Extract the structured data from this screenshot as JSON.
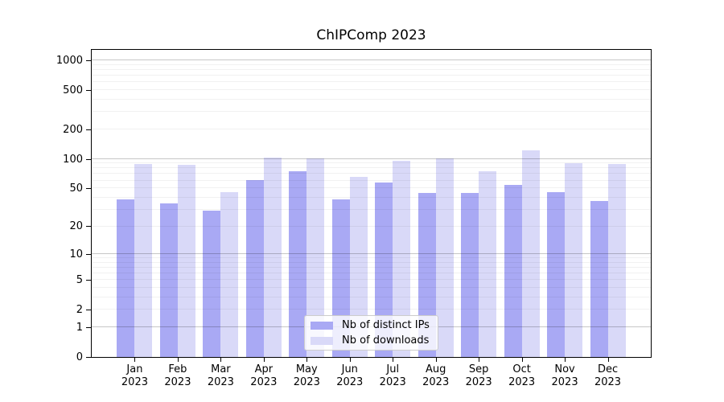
{
  "chart_data": {
    "type": "bar",
    "title": "ChIPComp 2023",
    "categories": [
      "Jan",
      "Feb",
      "Mar",
      "Apr",
      "May",
      "Jun",
      "Jul",
      "Aug",
      "Sep",
      "Oct",
      "Nov",
      "Dec"
    ],
    "x_sublabel": "2023",
    "series": [
      {
        "name": "Nb of distinct IPs",
        "color": "#a9a9f4",
        "values": [
          38,
          35,
          29,
          61,
          75,
          38,
          57,
          45,
          45,
          54,
          46,
          37
        ]
      },
      {
        "name": "Nb of downloads",
        "color": "#d9d9f8",
        "values": [
          89,
          87,
          46,
          104,
          101,
          66,
          96,
          101,
          75,
          123,
          90,
          89
        ]
      }
    ],
    "yscale": "log10(value+1)",
    "yticks": [
      0,
      1,
      2,
      5,
      10,
      20,
      50,
      100,
      200,
      500,
      1000
    ],
    "ylim": [
      0,
      1282
    ],
    "grid": {
      "major": [
        1,
        10,
        100,
        1000
      ],
      "minor": [
        2,
        3,
        4,
        5,
        6,
        7,
        8,
        9,
        20,
        30,
        40,
        50,
        60,
        70,
        80,
        90,
        200,
        300,
        400,
        500,
        600,
        700,
        800,
        900
      ]
    },
    "legend_position": "lower center",
    "colors": {
      "major_grid": "rgba(0,0,0,0.22)",
      "minor_grid": "rgba(0,0,0,0.055)",
      "spine": "#000000",
      "legend_border": "#cccccc"
    }
  }
}
